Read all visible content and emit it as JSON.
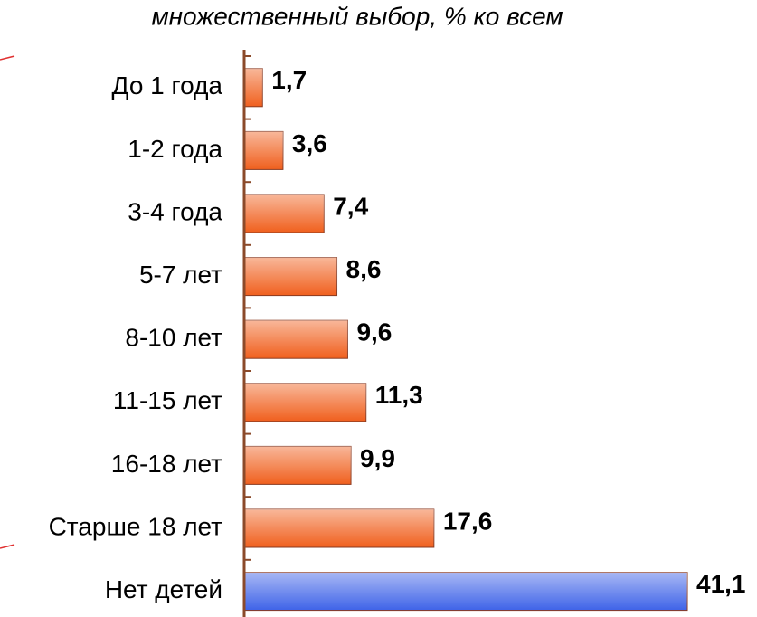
{
  "chart_data": {
    "type": "hbar",
    "subtitle": "множественный выбор, % ко всем",
    "categories": [
      "До 1 года",
      "1-2 года",
      "3-4 года",
      "5-7 лет",
      "8-10 лет",
      "11-15 лет",
      "16-18 лет",
      "Старше 18 лет",
      "Нет детей"
    ],
    "values": [
      1.7,
      3.6,
      7.4,
      8.6,
      9.6,
      11.3,
      9.9,
      17.6,
      41.1
    ],
    "value_labels": [
      "1,7",
      "3,6",
      "7,4",
      "8,6",
      "9,6",
      "11,3",
      "9,9",
      "17,6",
      "41,1"
    ],
    "colors": [
      "#f0601e",
      "#f0601e",
      "#f0601e",
      "#f0601e",
      "#f0601e",
      "#f0601e",
      "#f0601e",
      "#f0601e",
      "#3f63e8"
    ]
  }
}
